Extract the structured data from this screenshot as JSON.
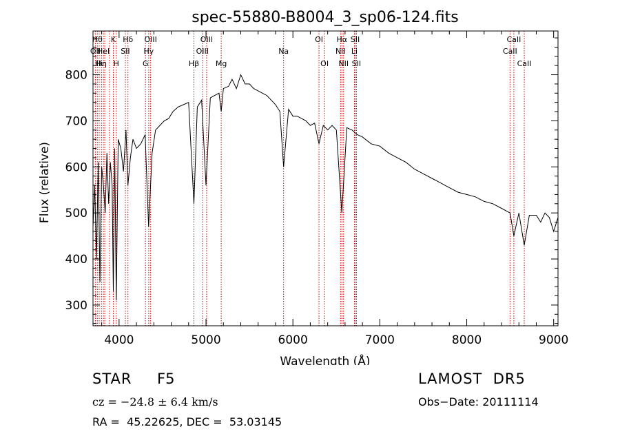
{
  "chart_data": {
    "type": "line",
    "title": "spec-55880-B8004_3_sp06-124.fits",
    "xlabel": "Wavelength (Å)",
    "ylabel": "Flux (relative)",
    "xlim": [
      3700,
      9050
    ],
    "ylim": [
      255,
      895
    ],
    "xticks": [
      4000,
      5000,
      6000,
      7000,
      8000,
      9000
    ],
    "yticks": [
      300,
      400,
      500,
      600,
      700,
      800
    ],
    "grid": false,
    "series": [
      {
        "x": [
          3700,
          3720,
          3740,
          3760,
          3780,
          3800,
          3820,
          3840,
          3860,
          3880,
          3900,
          3920,
          3934,
          3950,
          3968,
          3990,
          4020,
          4050,
          4080,
          4102,
          4130,
          4160,
          4200,
          4250,
          4300,
          4340,
          4380,
          4420,
          4470,
          4520,
          4570,
          4620,
          4680,
          4740,
          4800,
          4861,
          4900,
          4950,
          5000,
          5050,
          5100,
          5150,
          5175,
          5200,
          5260,
          5300,
          5350,
          5400,
          5450,
          5500,
          5550,
          5600,
          5650,
          5700,
          5750,
          5800,
          5850,
          5893,
          5950,
          6000,
          6050,
          6100,
          6150,
          6200,
          6250,
          6300,
          6350,
          6400,
          6450,
          6500,
          6563,
          6620,
          6680,
          6740,
          6800,
          6900,
          7000,
          7100,
          7200,
          7300,
          7400,
          7500,
          7600,
          7700,
          7800,
          7900,
          8000,
          8100,
          8200,
          8300,
          8400,
          8498,
          8542,
          8600,
          8662,
          8720,
          8800,
          8850,
          8900,
          8950,
          9000,
          9050
        ],
        "y": [
          470,
          560,
          400,
          610,
          350,
          600,
          560,
          500,
          630,
          520,
          610,
          560,
          330,
          640,
          310,
          660,
          640,
          590,
          680,
          560,
          620,
          660,
          640,
          650,
          670,
          470,
          630,
          680,
          690,
          700,
          705,
          720,
          730,
          735,
          740,
          520,
          730,
          745,
          560,
          750,
          755,
          760,
          720,
          770,
          775,
          790,
          770,
          800,
          780,
          780,
          770,
          765,
          760,
          755,
          745,
          735,
          720,
          600,
          725,
          710,
          710,
          705,
          700,
          690,
          695,
          650,
          690,
          680,
          690,
          680,
          500,
          685,
          680,
          670,
          665,
          650,
          645,
          630,
          620,
          610,
          595,
          585,
          575,
          565,
          555,
          545,
          540,
          535,
          525,
          520,
          510,
          500,
          450,
          500,
          430,
          495,
          495,
          480,
          500,
          490,
          460,
          490
        ]
      }
    ],
    "lines": [
      {
        "wl": 3727,
        "label": "OII",
        "row": 1
      },
      {
        "wl": 3750,
        "label": "Hθ",
        "row": 0
      },
      {
        "wl": 3771,
        "label": "Hι",
        "row": 2
      },
      {
        "wl": 3798,
        "label": "Hη",
        "row": 2
      },
      {
        "wl": 3820,
        "label": "HeI",
        "row": 1
      },
      {
        "wl": 3835,
        "label": "",
        "row": 0
      },
      {
        "wl": 3889,
        "label": "",
        "row": 0
      },
      {
        "wl": 3934,
        "label": "K",
        "row": 0
      },
      {
        "wl": 3968,
        "label": "H",
        "row": 2
      },
      {
        "wl": 4072,
        "label": "SII",
        "row": 1
      },
      {
        "wl": 4102,
        "label": "Hδ",
        "row": 0
      },
      {
        "wl": 4304,
        "label": "G",
        "row": 2
      },
      {
        "wl": 4341,
        "label": "Hγ",
        "row": 1
      },
      {
        "wl": 4363,
        "label": "OIII",
        "row": 0
      },
      {
        "wl": 4861,
        "label": "Hβ",
        "row": 2
      },
      {
        "wl": 4959,
        "label": "OIII",
        "row": 1
      },
      {
        "wl": 5007,
        "label": "OIII",
        "row": 0
      },
      {
        "wl": 5175,
        "label": "Mg",
        "row": 2
      },
      {
        "wl": 5893,
        "label": "Na",
        "row": 1
      },
      {
        "wl": 6300,
        "label": "OI",
        "row": 0
      },
      {
        "wl": 6364,
        "label": "OI",
        "row": 2
      },
      {
        "wl": 6548,
        "label": "NII",
        "row": 1
      },
      {
        "wl": 6563,
        "label": "Hα",
        "row": 0
      },
      {
        "wl": 6583,
        "label": "NII",
        "row": 2
      },
      {
        "wl": 6708,
        "label": "Li",
        "row": 1
      },
      {
        "wl": 6716,
        "label": "SII",
        "row": 0
      },
      {
        "wl": 6731,
        "label": "SII",
        "row": 2
      },
      {
        "wl": 8498,
        "label": "CaII",
        "row": 1
      },
      {
        "wl": 8542,
        "label": "CaII",
        "row": 0
      },
      {
        "wl": 8662,
        "label": "CaII",
        "row": 2
      }
    ]
  },
  "footer": {
    "class": "STAR",
    "subclass": "F5",
    "survey": "LAMOST  DR5",
    "redshift": "cz = −24.8 ± 6.4 km/s",
    "obs_date": "Obs−Date: 20111114",
    "coords": "RA =  45.22625, DEC =  53.03145"
  },
  "colors": {
    "spectrum": "#000000",
    "line_markers": "#cc0000",
    "axes": "#000000"
  }
}
